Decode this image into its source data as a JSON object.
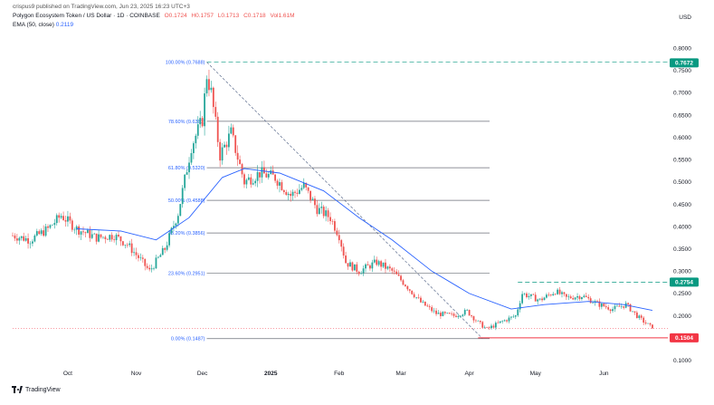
{
  "header": {
    "published_line": "crispus9 published on TradingView.com, Jun 23, 2025 16:23 UTC+3",
    "symbol_line": "Polygon Ecosystem Token / US Dollar · 1D · COINBASE",
    "ohlc": [
      "O0.1724",
      "H0.1757",
      "L0.1713",
      "C0.1718",
      "Vol1.61M"
    ],
    "ema_label": "EMA (50, close)",
    "ema_value": "0.2119",
    "currency": "USD"
  },
  "footer": {
    "brand": "TradingView"
  },
  "colors": {
    "up": "#26a69a",
    "down": "#ef5350",
    "ema": "#2962ff",
    "fib": "#131722",
    "fib_label": "#2962ff",
    "accent_green": "#089981",
    "accent_red": "#f23645"
  },
  "chart_data": {
    "type": "candlestick",
    "ylim": [
      0.075,
      0.835
    ],
    "y_ticks": [
      0.1,
      0.15,
      0.2,
      0.25,
      0.3,
      0.35,
      0.4,
      0.45,
      0.5,
      0.55,
      0.6,
      0.65,
      0.7,
      0.75,
      0.8
    ],
    "y_tick_labels": [
      "0.1000",
      "0.1500",
      "0.2000",
      "0.2500",
      "0.3000",
      "0.3500",
      "0.4000",
      "0.4500",
      "0.5000",
      "0.5500",
      "0.6000",
      "0.6500",
      "0.7000",
      "0.7500",
      "0.8000"
    ],
    "x_range": [
      "2024-09-06",
      "2025-06-30"
    ],
    "x_ticks": [
      {
        "date": "2024-10-01",
        "label": "Oct"
      },
      {
        "date": "2024-11-01",
        "label": "Nov"
      },
      {
        "date": "2024-12-01",
        "label": "Dec"
      },
      {
        "date": "2025-01-01",
        "label": "2025"
      },
      {
        "date": "2025-02-01",
        "label": "Feb"
      },
      {
        "date": "2025-03-01",
        "label": "Mar"
      },
      {
        "date": "2025-04-01",
        "label": "Apr"
      },
      {
        "date": "2025-05-01",
        "label": "May"
      },
      {
        "date": "2025-06-01",
        "label": "Jun"
      }
    ],
    "price_path": [
      [
        "2024-09-06",
        0.38
      ],
      [
        "2024-09-14",
        0.37
      ],
      [
        "2024-09-22",
        0.395
      ],
      [
        "2024-09-28",
        0.425
      ],
      [
        "2024-10-05",
        0.395
      ],
      [
        "2024-10-14",
        0.375
      ],
      [
        "2024-10-22",
        0.38
      ],
      [
        "2024-10-28",
        0.36
      ],
      [
        "2024-11-03",
        0.325
      ],
      [
        "2024-11-07",
        0.3
      ],
      [
        "2024-11-14",
        0.35
      ],
      [
        "2024-11-20",
        0.43
      ],
      [
        "2024-11-26",
        0.58
      ],
      [
        "2024-12-01",
        0.64
      ],
      [
        "2024-12-03",
        0.74
      ],
      [
        "2024-12-05",
        0.7
      ],
      [
        "2024-12-09",
        0.56
      ],
      [
        "2024-12-14",
        0.61
      ],
      [
        "2024-12-20",
        0.5
      ],
      [
        "2024-12-27",
        0.52
      ],
      [
        "2025-01-03",
        0.51
      ],
      [
        "2025-01-10",
        0.47
      ],
      [
        "2025-01-16",
        0.49
      ],
      [
        "2025-01-22",
        0.44
      ],
      [
        "2025-01-28",
        0.42
      ],
      [
        "2025-02-01",
        0.38
      ],
      [
        "2025-02-04",
        0.32
      ],
      [
        "2025-02-10",
        0.3
      ],
      [
        "2025-02-18",
        0.32
      ],
      [
        "2025-02-25",
        0.3
      ],
      [
        "2025-03-03",
        0.27
      ],
      [
        "2025-03-10",
        0.23
      ],
      [
        "2025-03-17",
        0.205
      ],
      [
        "2025-03-25",
        0.2
      ],
      [
        "2025-03-31",
        0.21
      ],
      [
        "2025-04-05",
        0.185
      ],
      [
        "2025-04-09",
        0.17
      ],
      [
        "2025-04-15",
        0.185
      ],
      [
        "2025-04-22",
        0.2
      ],
      [
        "2025-04-25",
        0.25
      ],
      [
        "2025-05-03",
        0.235
      ],
      [
        "2025-05-10",
        0.255
      ],
      [
        "2025-05-15",
        0.24
      ],
      [
        "2025-05-22",
        0.245
      ],
      [
        "2025-05-30",
        0.225
      ],
      [
        "2025-06-05",
        0.215
      ],
      [
        "2025-06-11",
        0.225
      ],
      [
        "2025-06-17",
        0.195
      ],
      [
        "2025-06-23",
        0.172
      ]
    ],
    "ema_path": [
      [
        "2024-10-05",
        0.395
      ],
      [
        "2024-10-25",
        0.39
      ],
      [
        "2024-11-10",
        0.37
      ],
      [
        "2024-11-25",
        0.42
      ],
      [
        "2024-12-10",
        0.51
      ],
      [
        "2024-12-20",
        0.53
      ],
      [
        "2025-01-05",
        0.52
      ],
      [
        "2025-01-25",
        0.48
      ],
      [
        "2025-02-10",
        0.42
      ],
      [
        "2025-02-25",
        0.37
      ],
      [
        "2025-03-15",
        0.3
      ],
      [
        "2025-04-01",
        0.25
      ],
      [
        "2025-04-20",
        0.215
      ],
      [
        "2025-05-05",
        0.225
      ],
      [
        "2025-05-25",
        0.232
      ],
      [
        "2025-06-10",
        0.225
      ],
      [
        "2025-06-23",
        0.212
      ]
    ],
    "fib_levels": [
      {
        "label": "100.00% (0.7688)",
        "value": 0.7688
      },
      {
        "label": "78.60% (0.6361)",
        "value": 0.6361
      },
      {
        "label": "61.80% (0.5320)",
        "value": 0.532
      },
      {
        "label": "50.00% (0.4588)",
        "value": 0.4588
      },
      {
        "label": "38.20% (0.3856)",
        "value": 0.3856
      },
      {
        "label": "23.60% (0.2951)",
        "value": 0.2951
      },
      {
        "label": "0.00% (0.1487)",
        "value": 0.1487
      }
    ],
    "fib_range": [
      "2024-12-03",
      "2025-04-07"
    ],
    "resistance_high": {
      "value": 0.7672,
      "label": "0.7672",
      "from": "2024-12-03"
    },
    "resistance_mid": {
      "value": 0.2754,
      "label": "0.2754",
      "from": "2025-04-23"
    },
    "support": {
      "value": 0.1504,
      "label": "0.1504",
      "from": "2025-04-05"
    },
    "last_price": 0.1718,
    "trendline": {
      "from": [
        "2024-12-03",
        0.7688
      ],
      "to": [
        "2025-04-07",
        0.1487
      ]
    }
  }
}
